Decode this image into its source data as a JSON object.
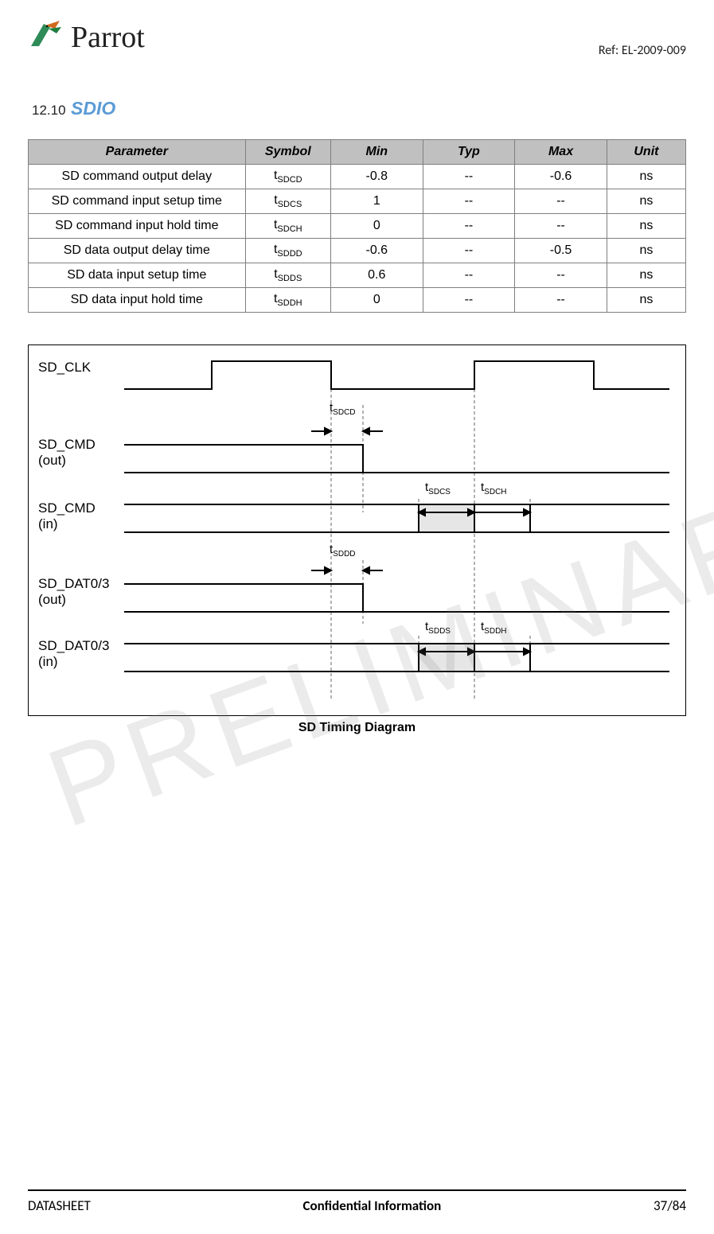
{
  "header": {
    "logo_text": "Parrot",
    "ref": "Ref: EL-2009-009"
  },
  "section": {
    "number": "12.10",
    "title": "SDIO"
  },
  "table": {
    "columns": [
      "Parameter",
      "Symbol",
      "Min",
      "Typ",
      "Max",
      "Unit"
    ],
    "rows": [
      {
        "param": "SD command output delay",
        "sym_main": "t",
        "sym_sub": "SDCD",
        "min": "-0.8",
        "typ": "--",
        "max": "-0.6",
        "unit": "ns"
      },
      {
        "param": "SD command input setup time",
        "sym_main": "t",
        "sym_sub": "SDCS",
        "min": "1",
        "typ": "--",
        "max": "--",
        "unit": "ns"
      },
      {
        "param": "SD command input hold time",
        "sym_main": "t",
        "sym_sub": "SDCH",
        "min": "0",
        "typ": "--",
        "max": "--",
        "unit": "ns"
      },
      {
        "param": "SD data output delay time",
        "sym_main": "t",
        "sym_sub": "SDDD",
        "min": "-0.6",
        "typ": "--",
        "max": "-0.5",
        "unit": "ns"
      },
      {
        "param": "SD data input setup time",
        "sym_main": "t",
        "sym_sub": "SDDS",
        "min": "0.6",
        "typ": "--",
        "max": "--",
        "unit": "ns"
      },
      {
        "param": "SD data input hold time",
        "sym_main": "t",
        "sym_sub": "SDDH",
        "min": "0",
        "typ": "--",
        "max": "--",
        "unit": "ns"
      }
    ],
    "header_bg": "#c0c0c0",
    "border_color": "#7f7f7f"
  },
  "diagram": {
    "caption": "SD Timing Diagram",
    "signals": {
      "clk": "SD_CLK",
      "cmd_out_a": "SD_CMD",
      "cmd_out_b": "(out)",
      "cmd_in_a": "SD_CMD",
      "cmd_in_b": "(in)",
      "dat_out_a": "SD_DAT0/3",
      "dat_out_b": "(out)",
      "dat_in_a": "SD_DAT0/3",
      "dat_in_b": "(in)"
    },
    "timing_labels": {
      "sdcd": "SDCD",
      "sdcs": "SDCS",
      "sdch": "SDCH",
      "sddd": "SDDD",
      "sdds": "SDDS",
      "sddh": "SDDH"
    },
    "colors": {
      "line": "#000000",
      "shade": "#e6e6e6",
      "dash": "#666666"
    }
  },
  "watermark": "PRELIMINARY",
  "footer": {
    "left": "DATASHEET",
    "center": "Confidential Information",
    "right": "37/84"
  }
}
